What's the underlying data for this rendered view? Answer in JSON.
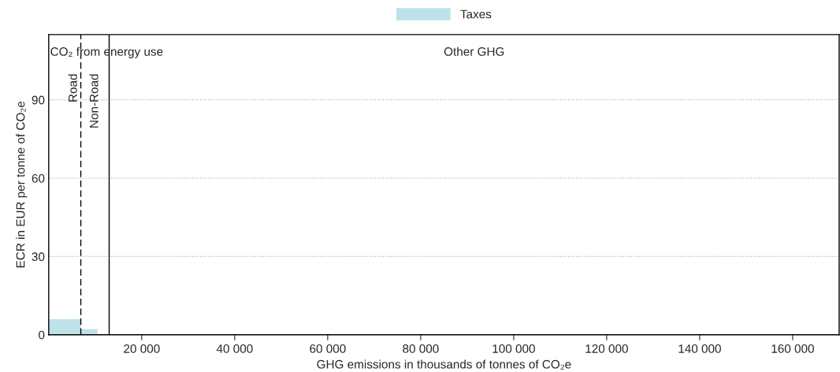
{
  "chart_data": {
    "type": "histogram",
    "xlabel": "GHG emissions in thousands of tonnes of CO₂e",
    "ylabel": "ECR in EUR per tonne of CO₂e",
    "bins": [
      0,
      6900,
      10500
    ],
    "series": [
      {
        "name": "Taxes",
        "color": "#bde2ea",
        "values": [
          6,
          2.2
        ]
      }
    ],
    "xlim": [
      0,
      170000
    ],
    "xticks": [
      {
        "value": 20000,
        "label": "20 000"
      },
      {
        "value": 40000,
        "label": "40 000"
      },
      {
        "value": 60000,
        "label": "60 000"
      },
      {
        "value": 80000,
        "label": "80 000"
      },
      {
        "value": 100000,
        "label": "100 000"
      },
      {
        "value": 120000,
        "label": "120 000"
      },
      {
        "value": 140000,
        "label": "140 000"
      },
      {
        "value": 160000,
        "label": "160 000"
      }
    ],
    "ylim": [
      0,
      115
    ],
    "yticks": [
      0,
      30,
      60,
      90
    ],
    "grid": "y",
    "legend": "top",
    "ref_lines": [
      {
        "axis": "x",
        "value": 6900,
        "color": "#000000",
        "line_style": "dashed"
      },
      {
        "axis": "x",
        "value": 13000,
        "color": "#000000",
        "line_style": "solid"
      }
    ],
    "annotations": [
      "CO₂ from energy use",
      "Other GHG",
      "Road",
      "Non-Road"
    ]
  }
}
